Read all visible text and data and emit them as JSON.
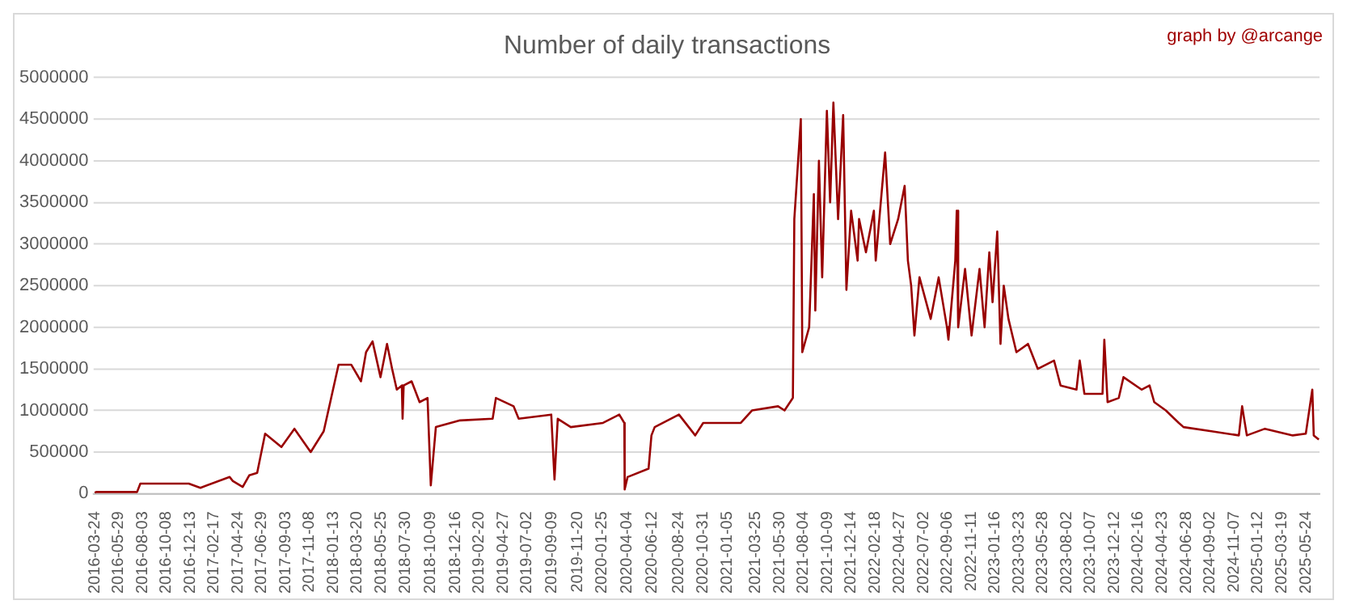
{
  "chart_data": {
    "type": "line",
    "title": "Number of daily transactions",
    "annotations": [
      "graph by @arcange"
    ],
    "x": [
      "2016-03-24",
      "2016-03-28",
      "2016-07-19",
      "2016-07-28",
      "2016-12-09",
      "2017-01-10",
      "2017-04-01",
      "2017-04-10",
      "2017-05-07",
      "2017-05-25",
      "2017-06-16",
      "2017-07-08",
      "2017-08-22",
      "2017-09-27",
      "2017-11-11",
      "2017-12-17",
      "2018-01-04",
      "2018-01-27",
      "2018-03-03",
      "2018-03-30",
      "2018-04-13",
      "2018-05-01",
      "2018-05-23",
      "2018-06-10",
      "2018-06-24",
      "2018-07-07",
      "2018-07-21",
      "2018-07-23",
      "2018-07-26",
      "2018-08-17",
      "2018-09-08",
      "2018-09-30",
      "2018-10-09",
      "2018-10-23",
      "2018-12-29",
      "2019-03-29",
      "2019-04-07",
      "2019-05-26",
      "2019-06-09",
      "2019-09-07",
      "2019-09-16",
      "2019-09-25",
      "2019-10-31",
      "2020-01-28",
      "2020-03-13",
      "2020-03-27",
      "2020-03-28",
      "2020-04-05",
      "2020-06-02",
      "2020-06-10",
      "2020-06-19",
      "2020-08-25",
      "2020-10-09",
      "2020-10-31",
      "2021-02-12",
      "2021-03-15",
      "2021-05-26",
      "2021-06-13",
      "2021-07-06",
      "2021-07-10",
      "2021-07-28",
      "2021-08-01",
      "2021-08-20",
      "2021-09-02",
      "2021-09-06",
      "2021-09-16",
      "2021-09-25",
      "2021-10-08",
      "2021-10-17",
      "2021-10-26",
      "2021-11-08",
      "2021-11-22",
      "2021-12-01",
      "2021-12-14",
      "2022-01-01",
      "2022-01-05",
      "2022-01-24",
      "2022-02-15",
      "2022-02-20",
      "2022-03-18",
      "2022-04-01",
      "2022-04-23",
      "2022-05-11",
      "2022-05-20",
      "2022-05-29",
      "2022-06-07",
      "2022-06-21",
      "2022-07-22",
      "2022-08-13",
      "2022-09-05",
      "2022-09-09",
      "2022-09-28",
      "2022-10-02",
      "2022-10-06",
      "2022-10-25",
      "2022-11-12",
      "2022-12-04",
      "2022-12-18",
      "2022-12-31",
      "2023-01-09",
      "2023-01-22",
      "2023-01-31",
      "2023-02-09",
      "2023-02-22",
      "2023-03-16",
      "2023-04-17",
      "2023-05-14",
      "2023-06-28",
      "2023-07-16",
      "2023-08-29",
      "2023-09-07",
      "2023-09-20",
      "2023-11-09",
      "2023-11-14",
      "2023-11-23",
      "2023-12-24",
      "2024-01-06",
      "2024-02-25",
      "2024-03-18",
      "2024-03-31",
      "2024-05-02",
      "2024-06-07",
      "2024-06-20",
      "2024-09-05",
      "2024-11-20",
      "2024-11-29",
      "2024-12-12",
      "2025-01-31",
      "2025-04-18",
      "2025-05-24",
      "2025-06-11",
      "2025-06-15",
      "2025-06-29"
    ],
    "series": [
      {
        "color": "#990000",
        "values": [
          10000,
          20000,
          20000,
          120000,
          120000,
          70000,
          200000,
          150000,
          80000,
          220000,
          250000,
          720000,
          560000,
          780000,
          500000,
          750000,
          1100000,
          1550000,
          1550000,
          1350000,
          1700000,
          1830000,
          1400000,
          1800000,
          1500000,
          1250000,
          1300000,
          900000,
          1300000,
          1350000,
          1100000,
          1150000,
          100000,
          800000,
          880000,
          900000,
          1150000,
          1050000,
          900000,
          950000,
          170000,
          900000,
          800000,
          850000,
          950000,
          850000,
          50000,
          200000,
          300000,
          700000,
          800000,
          950000,
          700000,
          850000,
          850000,
          1000000,
          1050000,
          1000000,
          1150000,
          3300000,
          4500000,
          1700000,
          2000000,
          3600000,
          2200000,
          4000000,
          2600000,
          4600000,
          3500000,
          4700000,
          3300000,
          4550000,
          2450000,
          3400000,
          2800000,
          3300000,
          2900000,
          3400000,
          2800000,
          4100000,
          3000000,
          3300000,
          3700000,
          2800000,
          2500000,
          1900000,
          2600000,
          2100000,
          2600000,
          2000000,
          1850000,
          2800000,
          3400000,
          2000000,
          2700000,
          1900000,
          2700000,
          2000000,
          2900000,
          2300000,
          3150000,
          1800000,
          2500000,
          2100000,
          1700000,
          1800000,
          1500000,
          1600000,
          1300000,
          1250000,
          1600000,
          1200000,
          1200000,
          1850000,
          1100000,
          1150000,
          1400000,
          1250000,
          1300000,
          1100000,
          1000000,
          850000,
          800000,
          750000,
          700000,
          1050000,
          700000,
          780000,
          700000,
          720000,
          1250000,
          700000,
          650000
        ]
      }
    ],
    "xlim": [
      "2016-03-20",
      "2025-07-01"
    ],
    "xticks": [
      {
        "value": "2016-03-24",
        "label": "2016-03-24"
      },
      {
        "value": "2016-05-29",
        "label": "2016-05-29"
      },
      {
        "value": "2016-08-03",
        "label": "2016-08-03"
      },
      {
        "value": "2016-10-08",
        "label": "2016-10-08"
      },
      {
        "value": "2016-12-13",
        "label": "2016-12-13"
      },
      {
        "value": "2017-02-17",
        "label": "2017-02-17"
      },
      {
        "value": "2017-04-24",
        "label": "2017-04-24"
      },
      {
        "value": "2017-06-29",
        "label": "2017-06-29"
      },
      {
        "value": "2017-09-03",
        "label": "2017-09-03"
      },
      {
        "value": "2017-11-08",
        "label": "2017-11-08"
      },
      {
        "value": "2018-01-13",
        "label": "2018-01-13"
      },
      {
        "value": "2018-03-20",
        "label": "2018-03-20"
      },
      {
        "value": "2018-05-25",
        "label": "2018-05-25"
      },
      {
        "value": "2018-07-30",
        "label": "2018-07-30"
      },
      {
        "value": "2018-10-09",
        "label": "2018-10-09"
      },
      {
        "value": "2018-12-16",
        "label": "2018-12-16"
      },
      {
        "value": "2019-02-20",
        "label": "2019-02-20"
      },
      {
        "value": "2019-04-27",
        "label": "2019-04-27"
      },
      {
        "value": "2019-07-02",
        "label": "2019-07-02"
      },
      {
        "value": "2019-09-09",
        "label": "2019-09-09"
      },
      {
        "value": "2019-11-20",
        "label": "2019-11-20"
      },
      {
        "value": "2020-01-25",
        "label": "2020-01-25"
      },
      {
        "value": "2020-04-04",
        "label": "2020-04-04"
      },
      {
        "value": "2020-06-12",
        "label": "2020-06-12"
      },
      {
        "value": "2020-08-24",
        "label": "2020-08-24"
      },
      {
        "value": "2020-10-31",
        "label": "2020-10-31"
      },
      {
        "value": "2021-01-05",
        "label": "2021-01-05"
      },
      {
        "value": "2021-03-25",
        "label": "2021-03-25"
      },
      {
        "value": "2021-05-30",
        "label": "2021-05-30"
      },
      {
        "value": "2021-08-04",
        "label": "2021-08-04"
      },
      {
        "value": "2021-10-09",
        "label": "2021-10-09"
      },
      {
        "value": "2021-12-14",
        "label": "2021-12-14"
      },
      {
        "value": "2022-02-18",
        "label": "2022-02-18"
      },
      {
        "value": "2022-04-27",
        "label": "2022-04-27"
      },
      {
        "value": "2022-07-02",
        "label": "2022-07-02"
      },
      {
        "value": "2022-09-06",
        "label": "2022-09-06"
      },
      {
        "value": "2022-11-11",
        "label": "2022-11-11"
      },
      {
        "value": "2023-01-16",
        "label": "2023-01-16"
      },
      {
        "value": "2023-03-23",
        "label": "2023-03-23"
      },
      {
        "value": "2023-05-28",
        "label": "2023-05-28"
      },
      {
        "value": "2023-08-02",
        "label": "2023-08-02"
      },
      {
        "value": "2023-10-07",
        "label": "2023-10-07"
      },
      {
        "value": "2023-12-12",
        "label": "2023-12-12"
      },
      {
        "value": "2024-02-16",
        "label": "2024-02-16"
      },
      {
        "value": "2024-04-23",
        "label": "2024-04-23"
      },
      {
        "value": "2024-06-28",
        "label": "2024-06-28"
      },
      {
        "value": "2024-09-02",
        "label": "2024-09-02"
      },
      {
        "value": "2024-11-07",
        "label": "2024-11-07"
      },
      {
        "value": "2025-01-12",
        "label": "2025-01-12"
      },
      {
        "value": "2025-03-19",
        "label": "2025-03-19"
      },
      {
        "value": "2025-05-24",
        "label": "2025-05-24"
      }
    ],
    "ylim": [
      0,
      5000000
    ],
    "yticks": [
      0,
      500000,
      1000000,
      1500000,
      2000000,
      2500000,
      3000000,
      3500000,
      4000000,
      4500000,
      5000000
    ],
    "grid": "y",
    "legend": false,
    "marker": "none",
    "line_style": "solid"
  }
}
